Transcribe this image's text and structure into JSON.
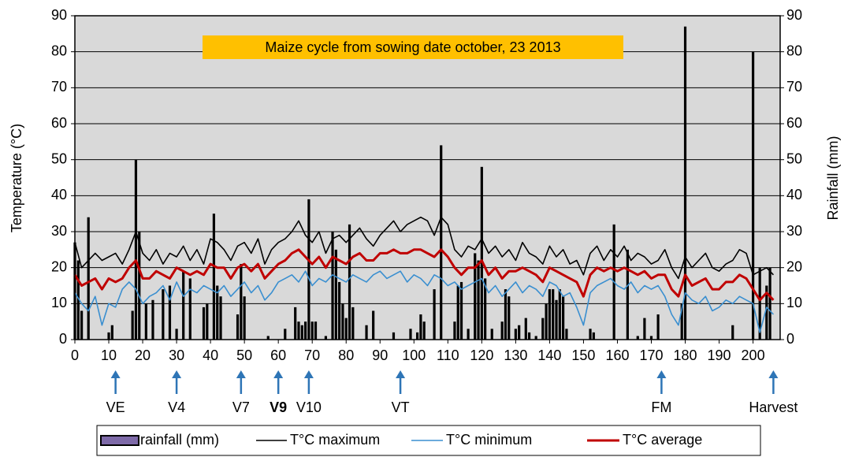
{
  "chart_data": {
    "type": "line",
    "title": "Maize cycle from sowing date october, 23 2013",
    "y_label": "Temperature (°C)",
    "y2_label": "Rainfall (mm)",
    "xlim": [
      0,
      208
    ],
    "xticks": [
      0,
      10,
      20,
      30,
      40,
      50,
      60,
      70,
      80,
      90,
      100,
      110,
      120,
      130,
      140,
      150,
      160,
      170,
      180,
      190,
      200
    ],
    "ylim": [
      0,
      90
    ],
    "yticks": [
      0,
      10,
      20,
      30,
      40,
      50,
      60,
      70,
      80,
      90
    ],
    "y2lim": [
      0,
      90
    ],
    "y2ticks": [
      0,
      10,
      20,
      30,
      40,
      50,
      60,
      70,
      80,
      90
    ],
    "grid": true,
    "x": [
      0,
      2,
      4,
      6,
      8,
      10,
      12,
      14,
      16,
      18,
      20,
      22,
      24,
      26,
      28,
      30,
      32,
      34,
      36,
      38,
      40,
      42,
      44,
      46,
      48,
      50,
      52,
      54,
      56,
      58,
      60,
      62,
      64,
      66,
      68,
      70,
      72,
      74,
      76,
      78,
      80,
      82,
      84,
      86,
      88,
      90,
      92,
      94,
      96,
      98,
      100,
      102,
      104,
      106,
      108,
      110,
      112,
      114,
      116,
      118,
      120,
      122,
      124,
      126,
      128,
      130,
      132,
      134,
      136,
      138,
      140,
      142,
      144,
      146,
      148,
      150,
      152,
      154,
      156,
      158,
      160,
      162,
      164,
      166,
      168,
      170,
      172,
      174,
      176,
      178,
      180,
      182,
      184,
      186,
      188,
      190,
      192,
      194,
      196,
      198,
      200,
      202,
      204,
      206
    ],
    "series": [
      {
        "name": "rainfall (mm)",
        "type": "bar",
        "axis": "y2",
        "color": "#000000",
        "x": [
          0,
          1,
          2,
          4,
          10,
          11,
          17,
          18,
          19,
          21,
          23,
          26,
          28,
          30,
          32,
          34,
          38,
          39,
          41,
          42,
          43,
          48,
          49,
          50,
          57,
          62,
          65,
          66,
          67,
          68,
          69,
          70,
          71,
          74,
          76,
          77,
          78,
          79,
          80,
          81,
          82,
          86,
          88,
          94,
          99,
          101,
          102,
          103,
          106,
          108,
          112,
          113,
          114,
          116,
          118,
          119,
          120,
          121,
          123,
          126,
          127,
          128,
          130,
          131,
          133,
          134,
          136,
          138,
          139,
          140,
          141,
          142,
          143,
          144,
          145,
          152,
          153,
          159,
          163,
          166,
          168,
          170,
          172,
          179,
          180,
          194,
          200,
          202,
          204,
          205
        ],
        "values": [
          27,
          22,
          8,
          34,
          2,
          4,
          8,
          50,
          30,
          10,
          11,
          14,
          15,
          3,
          19,
          17,
          9,
          10,
          35,
          15,
          12,
          7,
          21,
          12,
          1,
          3,
          9,
          5,
          4,
          5,
          39,
          5,
          5,
          1,
          30,
          25,
          16,
          10,
          6,
          32,
          9,
          4,
          8,
          2,
          3,
          2,
          7,
          5,
          14,
          54,
          5,
          15,
          16,
          3,
          24,
          22,
          48,
          17,
          3,
          5,
          14,
          12,
          3,
          4,
          6,
          2,
          1,
          6,
          10,
          14,
          14,
          11,
          14,
          12,
          3,
          3,
          2,
          32,
          25,
          1,
          6,
          1,
          7,
          10,
          87,
          4,
          80,
          20,
          15,
          20
        ]
      },
      {
        "name": "T°C maximum",
        "type": "line",
        "color": "#000000",
        "values": [
          27,
          20,
          22,
          24,
          22,
          23,
          24,
          21,
          25,
          30,
          24,
          22,
          25,
          21,
          24,
          23,
          26,
          22,
          25,
          21,
          28,
          27,
          25,
          22,
          26,
          27,
          24,
          28,
          21,
          25,
          27,
          28,
          30,
          33,
          29,
          27,
          30,
          24,
          28,
          29,
          27,
          29,
          31,
          28,
          26,
          29,
          31,
          33,
          30,
          32,
          33,
          34,
          33,
          29,
          34,
          32,
          25,
          23,
          26,
          25,
          28,
          24,
          26,
          23,
          25,
          22,
          27,
          24,
          23,
          21,
          26,
          23,
          25,
          21,
          22,
          18,
          24,
          26,
          22,
          25,
          23,
          26,
          22,
          24,
          23,
          21,
          22,
          25,
          20,
          17,
          23,
          20,
          22,
          24,
          20,
          19,
          21,
          22,
          25,
          24,
          18,
          19,
          20,
          18
        ]
      },
      {
        "name": "T°C minimum",
        "type": "line",
        "color": "#3a8fd0",
        "values": [
          13,
          10,
          8,
          12,
          4,
          10,
          9,
          14,
          16,
          14,
          10,
          12,
          13,
          15,
          11,
          16,
          12,
          14,
          13,
          15,
          14,
          13,
          15,
          12,
          14,
          16,
          13,
          15,
          11,
          13,
          16,
          17,
          18,
          16,
          19,
          15,
          17,
          16,
          18,
          17,
          16,
          18,
          17,
          16,
          18,
          19,
          17,
          18,
          19,
          16,
          18,
          17,
          15,
          18,
          17,
          15,
          16,
          14,
          15,
          16,
          17,
          13,
          15,
          12,
          14,
          16,
          13,
          15,
          14,
          12,
          16,
          15,
          12,
          13,
          9,
          4,
          13,
          15,
          16,
          17,
          15,
          14,
          16,
          13,
          15,
          14,
          15,
          12,
          7,
          4,
          13,
          11,
          10,
          12,
          8,
          9,
          11,
          10,
          12,
          11,
          10,
          2,
          9,
          7
        ]
      },
      {
        "name": "T°C average",
        "type": "line",
        "color": "#c00000",
        "values": [
          18,
          15,
          16,
          17,
          14,
          17,
          16,
          17,
          20,
          22,
          17,
          17,
          19,
          18,
          17,
          20,
          19,
          18,
          19,
          18,
          21,
          20,
          20,
          17,
          20,
          21,
          19,
          21,
          17,
          19,
          21,
          22,
          24,
          25,
          23,
          21,
          23,
          20,
          23,
          22,
          21,
          23,
          24,
          22,
          22,
          24,
          24,
          25,
          24,
          24,
          25,
          25,
          24,
          23,
          25,
          23,
          20,
          18,
          20,
          20,
          22,
          18,
          20,
          17,
          19,
          19,
          20,
          19,
          18,
          16,
          20,
          19,
          18,
          17,
          16,
          12,
          18,
          20,
          19,
          20,
          19,
          20,
          19,
          18,
          19,
          17,
          18,
          18,
          14,
          12,
          18,
          15,
          16,
          17,
          14,
          14,
          16,
          16,
          18,
          17,
          14,
          11,
          13,
          11
        ]
      }
    ],
    "stages": [
      {
        "label": "VE",
        "x": 12
      },
      {
        "label": "V4",
        "x": 30
      },
      {
        "label": "V7",
        "x": 49
      },
      {
        "label": "V9",
        "x": 60,
        "bold": true
      },
      {
        "label": "V10",
        "x": 69
      },
      {
        "label": "VT",
        "x": 96
      },
      {
        "label": "FM",
        "x": 173
      },
      {
        "label": "Harvest",
        "x": 206
      }
    ]
  }
}
